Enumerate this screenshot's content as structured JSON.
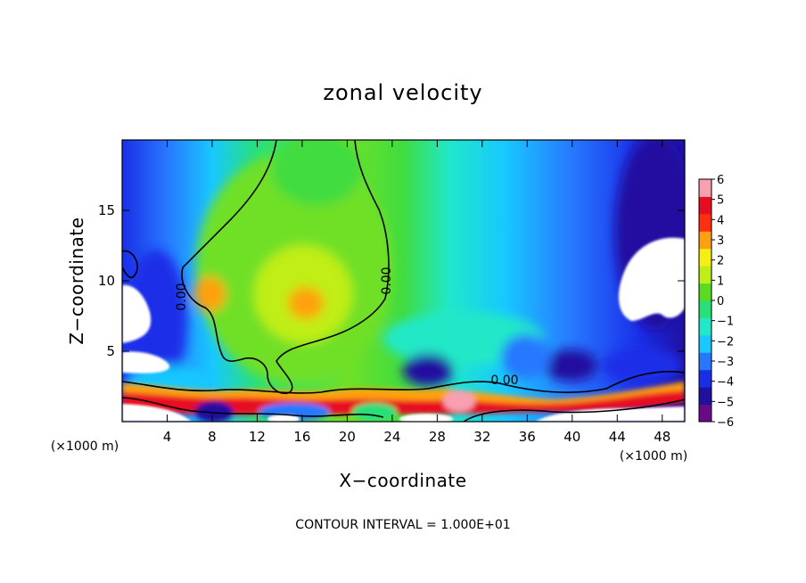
{
  "chart_data": {
    "type": "heatmap",
    "title": "zonal velocity",
    "xlabel": "X−coordinate",
    "ylabel": "Z−coordinate",
    "x_unit_label": "(×1000 m)",
    "x_ticks": [
      4,
      8,
      12,
      16,
      20,
      24,
      28,
      32,
      36,
      40,
      44,
      48
    ],
    "y_ticks": [
      5,
      10,
      15
    ],
    "xlim": [
      0,
      50
    ],
    "ylim": [
      0,
      20
    ],
    "colorbar": {
      "ticks": [
        6,
        5,
        4,
        3,
        2,
        1,
        0,
        "−1",
        "−2",
        "−3",
        "−4",
        "−5",
        "−6"
      ],
      "range": [
        -6,
        6
      ],
      "colors": [
        "#6a0a8a",
        "#2010a0",
        "#1a2ee8",
        "#2878ff",
        "#18c8ff",
        "#20e8c8",
        "#28e07a",
        "#58dc22",
        "#c0ee18",
        "#f6f012",
        "#ffa010",
        "#ff3010",
        "#e80c20",
        "#f8a0b0"
      ]
    },
    "contour_labels": [
      "0.00",
      "0.00",
      "0.00"
    ],
    "contour_interval_text": "CONTOUR INTERVAL = 1.000E+01",
    "masked_color": "#ffffff"
  }
}
